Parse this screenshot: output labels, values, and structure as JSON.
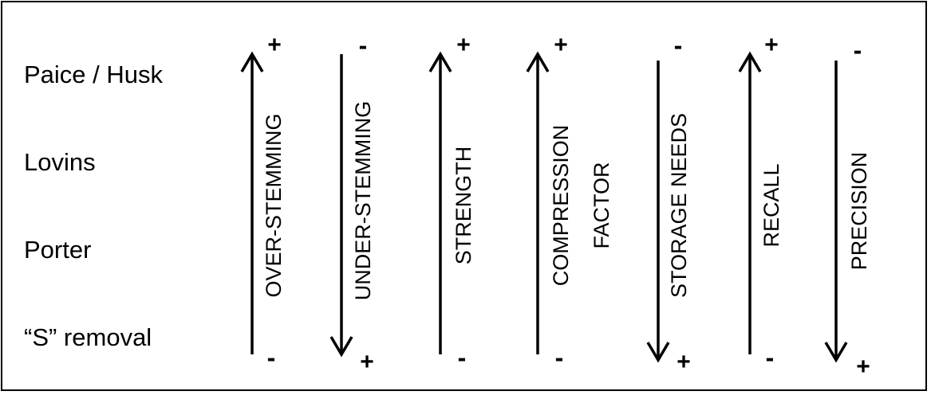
{
  "row_labels": [
    "Paice / Husk",
    "Lovins",
    "Porter",
    "“S” removal"
  ],
  "columns": [
    {
      "label": "OVER-STEMMING",
      "direction": "up",
      "top_sign": "+",
      "bottom_sign": "-"
    },
    {
      "label": "UNDER-STEMMING",
      "direction": "down",
      "top_sign": "-",
      "bottom_sign": "+"
    },
    {
      "label": "STRENGTH",
      "direction": "up",
      "top_sign": "+",
      "bottom_sign": "-"
    },
    {
      "label_lines": [
        "COMPRESSION",
        "FACTOR"
      ],
      "direction": "up",
      "top_sign": "+",
      "bottom_sign": "-"
    },
    {
      "label": "STORAGE NEEDS",
      "direction": "down",
      "top_sign": "-",
      "bottom_sign": "+"
    },
    {
      "label": "RECALL",
      "direction": "up",
      "top_sign": "+",
      "bottom_sign": "-"
    },
    {
      "label": "PRECISION",
      "direction": "down",
      "top_sign": "-",
      "bottom_sign": "+"
    }
  ],
  "colors": {
    "line": "#000000",
    "background": "#ffffff"
  }
}
